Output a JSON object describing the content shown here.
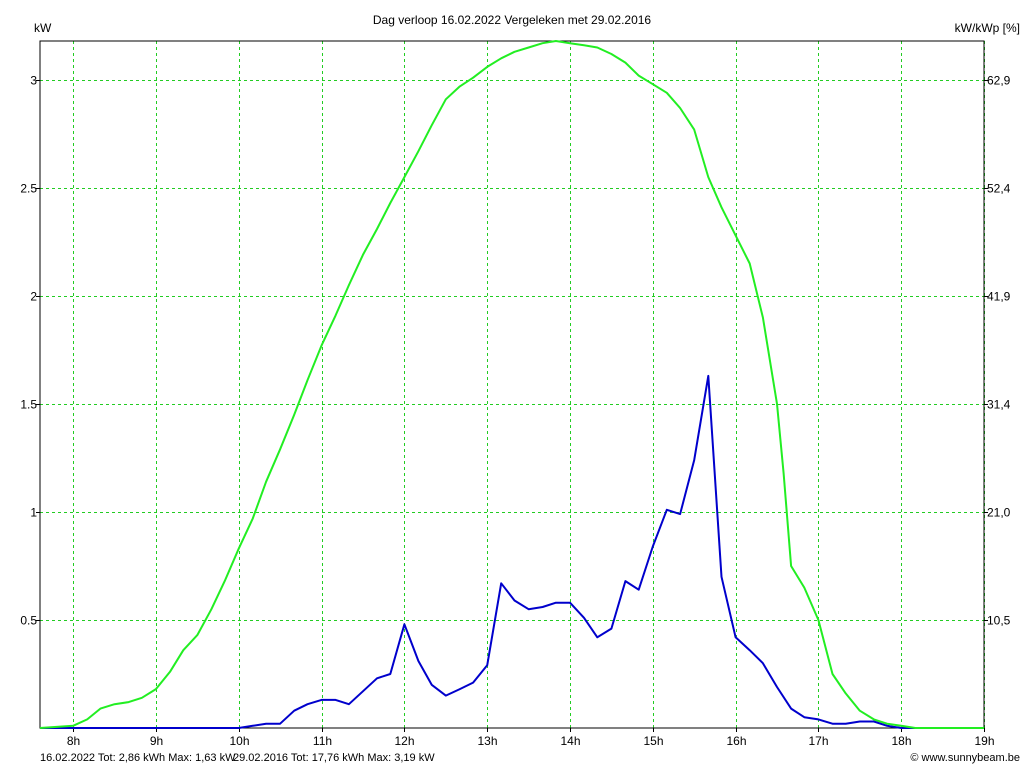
{
  "chart_data": {
    "type": "line",
    "title": "Dag  verloop 16.02.2022   Vergeleken met 29.02.2016",
    "ylabel_left": "kW",
    "ylabel_right": "kW/kWp [%]",
    "xlim": [
      7.6,
      19.0
    ],
    "ylim": [
      0,
      3.18
    ],
    "grid": true,
    "x_ticks": [
      {
        "value": 8,
        "label": "8h"
      },
      {
        "value": 9,
        "label": "9h"
      },
      {
        "value": 10,
        "label": "10h"
      },
      {
        "value": 11,
        "label": "11h"
      },
      {
        "value": 12,
        "label": "12h"
      },
      {
        "value": 13,
        "label": "13h"
      },
      {
        "value": 14,
        "label": "14h"
      },
      {
        "value": 15,
        "label": "15h"
      },
      {
        "value": 16,
        "label": "16h"
      },
      {
        "value": 17,
        "label": "17h"
      },
      {
        "value": 18,
        "label": "18h"
      },
      {
        "value": 19,
        "label": "19h"
      }
    ],
    "y_ticks_left": [
      {
        "value": 0.5,
        "label": "0.5"
      },
      {
        "value": 1,
        "label": "1"
      },
      {
        "value": 1.5,
        "label": "1.5"
      },
      {
        "value": 2,
        "label": "2"
      },
      {
        "value": 2.5,
        "label": "2.5"
      },
      {
        "value": 3,
        "label": "3"
      }
    ],
    "y_ticks_right": [
      {
        "value": 0.5,
        "label": "10,5"
      },
      {
        "value": 1,
        "label": "21,0"
      },
      {
        "value": 1.5,
        "label": "31,4"
      },
      {
        "value": 2,
        "label": "41,9"
      },
      {
        "value": 2.5,
        "label": "52,4"
      },
      {
        "value": 3,
        "label": "62,9"
      }
    ],
    "series": [
      {
        "color": "#0000cc",
        "x": [
          7.6,
          8.0,
          9.0,
          10.0,
          10.17,
          10.33,
          10.5,
          10.67,
          10.83,
          11.0,
          11.17,
          11.33,
          11.5,
          11.67,
          11.83,
          12.0,
          12.17,
          12.33,
          12.5,
          12.67,
          12.83,
          13.0,
          13.17,
          13.33,
          13.5,
          13.67,
          13.83,
          14.0,
          14.17,
          14.33,
          14.5,
          14.67,
          14.83,
          15.0,
          15.17,
          15.33,
          15.5,
          15.67,
          15.83,
          16.0,
          16.17,
          16.33,
          16.5,
          16.67,
          16.83,
          17.0,
          17.17,
          17.33,
          17.5,
          17.67,
          17.83,
          18.0,
          18.17,
          18.5,
          19.0
        ],
        "values": [
          0,
          0,
          0,
          0,
          0.01,
          0.02,
          0.02,
          0.08,
          0.11,
          0.13,
          0.13,
          0.11,
          0.17,
          0.23,
          0.25,
          0.48,
          0.31,
          0.2,
          0.15,
          0.18,
          0.21,
          0.29,
          0.67,
          0.59,
          0.55,
          0.56,
          0.58,
          0.58,
          0.51,
          0.42,
          0.46,
          0.68,
          0.64,
          0.84,
          1.01,
          0.99,
          1.24,
          1.63,
          0.7,
          0.42,
          0.36,
          0.3,
          0.19,
          0.09,
          0.05,
          0.04,
          0.02,
          0.02,
          0.03,
          0.03,
          0.01,
          0.0,
          0,
          0,
          0
        ]
      },
      {
        "color": "#22ee22",
        "x": [
          7.6,
          8.0,
          8.17,
          8.33,
          8.5,
          8.67,
          8.83,
          9.0,
          9.17,
          9.33,
          9.5,
          9.67,
          9.83,
          10.0,
          10.17,
          10.33,
          10.5,
          10.67,
          10.83,
          11.0,
          11.17,
          11.33,
          11.5,
          11.67,
          11.83,
          12.0,
          12.17,
          12.33,
          12.5,
          12.67,
          12.83,
          13.0,
          13.17,
          13.33,
          13.5,
          13.67,
          13.83,
          14.0,
          14.17,
          14.33,
          14.5,
          14.67,
          14.83,
          15.0,
          15.17,
          15.33,
          15.5,
          15.67,
          15.83,
          16.0,
          16.17,
          16.33,
          16.5,
          16.58,
          16.67,
          16.83,
          17.0,
          17.17,
          17.33,
          17.5,
          17.67,
          17.83,
          18.0,
          18.17,
          18.5,
          19.0
        ],
        "values": [
          0,
          0.01,
          0.04,
          0.09,
          0.11,
          0.12,
          0.14,
          0.18,
          0.26,
          0.36,
          0.43,
          0.55,
          0.68,
          0.83,
          0.97,
          1.14,
          1.29,
          1.45,
          1.61,
          1.77,
          1.91,
          2.05,
          2.19,
          2.31,
          2.43,
          2.55,
          2.67,
          2.79,
          2.91,
          2.97,
          3.01,
          3.06,
          3.1,
          3.13,
          3.15,
          3.17,
          3.18,
          3.17,
          3.16,
          3.15,
          3.12,
          3.08,
          3.02,
          2.98,
          2.94,
          2.87,
          2.77,
          2.55,
          2.41,
          2.28,
          2.15,
          1.9,
          1.5,
          1.18,
          0.75,
          0.65,
          0.5,
          0.25,
          0.16,
          0.08,
          0.04,
          0.02,
          0.01,
          0.0,
          0,
          0
        ]
      }
    ]
  },
  "footer": {
    "series1_text": "16.02.2022 Tot: 2,86 kWh Max: 1,63 kW",
    "series2_text": "29.02.2016 Tot: 17,76 kWh Max: 3,19 kW",
    "credit": "© www.sunnybeam.be",
    "series1_color": "#0000cc",
    "series2_color": "#22bb22"
  }
}
